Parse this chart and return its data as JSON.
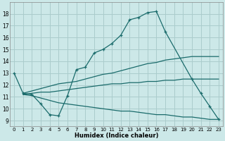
{
  "xlabel": "Humidex (Indice chaleur)",
  "bg_color": "#cce8e8",
  "grid_color": "#aacccc",
  "line_color": "#1a6b6b",
  "ylim": [
    8.5,
    19.0
  ],
  "xlim": [
    -0.5,
    23.5
  ],
  "yticks": [
    9,
    10,
    11,
    12,
    13,
    14,
    15,
    16,
    17,
    18
  ],
  "xticks": [
    0,
    1,
    2,
    3,
    4,
    5,
    6,
    7,
    8,
    9,
    10,
    11,
    12,
    13,
    14,
    15,
    16,
    17,
    18,
    19,
    20,
    21,
    22,
    23
  ],
  "main_x": [
    0,
    1,
    2,
    3,
    4,
    5,
    6,
    7,
    8,
    9,
    10,
    11,
    12,
    13,
    14,
    15,
    16,
    17,
    20,
    21,
    22,
    23
  ],
  "main_y": [
    13.0,
    11.3,
    11.2,
    10.4,
    9.5,
    9.4,
    11.1,
    13.3,
    13.5,
    14.7,
    15.0,
    15.5,
    16.2,
    17.5,
    17.7,
    18.1,
    18.2,
    16.5,
    12.5,
    11.3,
    10.2,
    9.1
  ],
  "upper_x": [
    1,
    2,
    3,
    4,
    5,
    6,
    7,
    8,
    9,
    10,
    11,
    12,
    13,
    14,
    15,
    16,
    17,
    18,
    19,
    20,
    21,
    22,
    23
  ],
  "upper_y": [
    11.3,
    11.5,
    11.7,
    11.9,
    12.1,
    12.2,
    12.3,
    12.5,
    12.7,
    12.9,
    13.0,
    13.2,
    13.4,
    13.6,
    13.8,
    13.9,
    14.1,
    14.2,
    14.3,
    14.4,
    14.4,
    14.4,
    14.4
  ],
  "mid_x": [
    1,
    2,
    3,
    4,
    5,
    6,
    7,
    8,
    9,
    10,
    11,
    12,
    13,
    14,
    15,
    16,
    17,
    18,
    19,
    20,
    21,
    22,
    23
  ],
  "mid_y": [
    11.2,
    11.3,
    11.4,
    11.4,
    11.5,
    11.6,
    11.7,
    11.8,
    11.9,
    12.0,
    12.1,
    12.1,
    12.2,
    12.2,
    12.3,
    12.3,
    12.4,
    12.4,
    12.5,
    12.5,
    12.5,
    12.5,
    12.5
  ],
  "low_x": [
    1,
    2,
    3,
    4,
    5,
    6,
    7,
    8,
    9,
    10,
    11,
    12,
    13,
    14,
    15,
    16,
    17,
    18,
    19,
    20,
    21,
    22,
    23
  ],
  "low_y": [
    11.2,
    11.1,
    10.9,
    10.7,
    10.5,
    10.4,
    10.3,
    10.2,
    10.1,
    10.0,
    9.9,
    9.8,
    9.8,
    9.7,
    9.6,
    9.5,
    9.5,
    9.4,
    9.3,
    9.3,
    9.2,
    9.1,
    9.1
  ]
}
